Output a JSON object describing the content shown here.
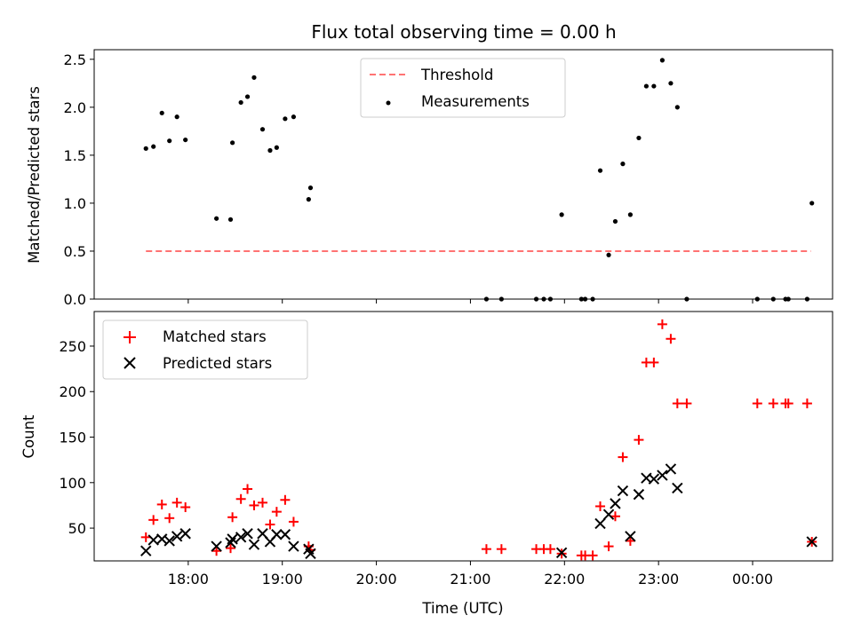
{
  "colors": {
    "threshold": "#ff7373",
    "measurement": "#000000",
    "matched": "#ff0000",
    "predicted": "#000000"
  },
  "chart_data": [
    {
      "type": "scatter",
      "title": "Flux total observing time = 0.00 h",
      "ylabel": "Matched/Predicted stars",
      "xlabel": "",
      "xlim": [
        17.0,
        24.85
      ],
      "ylim": [
        0,
        2.6
      ],
      "yticks": [
        0.0,
        0.5,
        1.0,
        1.5,
        2.0,
        2.5
      ],
      "ytick_labels": [
        "0.0",
        "0.5",
        "1.0",
        "1.5",
        "2.0",
        "2.5"
      ],
      "legend": [
        "Threshold",
        "Measurements"
      ],
      "legend_position": "top-center",
      "series": [
        {
          "name": "Threshold",
          "style": "dashed-line",
          "x": [
            17.55,
            24.62
          ],
          "y": [
            0.5,
            0.5
          ]
        },
        {
          "name": "Measurements",
          "style": "dot",
          "x": [
            17.55,
            17.63,
            17.72,
            17.8,
            17.88,
            17.97,
            18.3,
            18.45,
            18.47,
            18.56,
            18.63,
            18.7,
            18.79,
            18.87,
            18.94,
            19.03,
            19.12,
            19.28,
            19.3,
            21.17,
            21.33,
            21.7,
            21.78,
            21.85,
            21.97,
            22.18,
            22.22,
            22.3,
            22.38,
            22.47,
            22.54,
            22.62,
            22.7,
            22.79,
            22.87,
            22.95,
            23.04,
            23.13,
            23.2,
            23.3,
            24.05,
            24.22,
            24.35,
            24.38,
            24.58,
            24.63
          ],
          "y": [
            1.57,
            1.59,
            1.94,
            1.65,
            1.9,
            1.66,
            0.84,
            0.83,
            1.63,
            2.05,
            2.11,
            2.31,
            1.77,
            1.55,
            1.58,
            1.88,
            1.9,
            1.04,
            1.16,
            0.0,
            0.0,
            0.0,
            0.0,
            0.0,
            0.88,
            0.0,
            0.0,
            0.0,
            1.34,
            0.46,
            0.81,
            1.41,
            0.88,
            1.68,
            2.22,
            2.22,
            2.49,
            2.25,
            2.0,
            0.0,
            0.0,
            0.0,
            0.0,
            0.0,
            0.0,
            1.0
          ]
        }
      ]
    },
    {
      "type": "scatter",
      "title": "",
      "ylabel": "Count",
      "xlabel": "Time (UTC)",
      "xlim": [
        17.0,
        24.85
      ],
      "ylim": [
        14,
        288
      ],
      "yticks": [
        50,
        100,
        150,
        200,
        250
      ],
      "ytick_labels": [
        "50",
        "100",
        "150",
        "200",
        "250"
      ],
      "xticks": [
        18,
        19,
        20,
        21,
        22,
        23,
        24
      ],
      "xtick_labels": [
        "18:00",
        "19:00",
        "20:00",
        "21:00",
        "22:00",
        "23:00",
        "00:00"
      ],
      "legend": [
        "Matched stars",
        "Predicted stars"
      ],
      "legend_position": "top-left",
      "series": [
        {
          "name": "Matched stars",
          "style": "plus",
          "x": [
            17.55,
            17.63,
            17.72,
            17.8,
            17.88,
            17.97,
            18.3,
            18.45,
            18.47,
            18.56,
            18.63,
            18.7,
            18.79,
            18.87,
            18.94,
            19.03,
            19.12,
            19.28,
            19.3,
            21.17,
            21.33,
            21.7,
            21.78,
            21.85,
            21.97,
            22.18,
            22.22,
            22.3,
            22.38,
            22.47,
            22.54,
            22.62,
            22.7,
            22.79,
            22.87,
            22.95,
            23.04,
            23.13,
            23.2,
            23.3,
            24.05,
            24.22,
            24.35,
            24.38,
            24.58,
            24.63
          ],
          "y": [
            40,
            59,
            76,
            61,
            78,
            73,
            25,
            28,
            62,
            82,
            93,
            75,
            78,
            54,
            68,
            81,
            57,
            30,
            26,
            27,
            27,
            27,
            27,
            27,
            22,
            20,
            20,
            20,
            74,
            30,
            63,
            128,
            36,
            147,
            232,
            232,
            274,
            258,
            187,
            187,
            187,
            187,
            187,
            187,
            187,
            35
          ]
        },
        {
          "name": "Predicted stars",
          "style": "x",
          "x": [
            17.55,
            17.63,
            17.72,
            17.8,
            17.88,
            17.97,
            18.3,
            18.45,
            18.47,
            18.56,
            18.63,
            18.7,
            18.79,
            18.87,
            18.94,
            19.03,
            19.12,
            19.28,
            19.3,
            21.97,
            22.38,
            22.47,
            22.54,
            22.62,
            22.7,
            22.79,
            22.87,
            22.95,
            23.04,
            23.13,
            23.2,
            24.63
          ],
          "y": [
            25,
            37,
            38,
            36,
            41,
            44,
            30,
            34,
            38,
            40,
            44,
            32,
            44,
            35,
            43,
            43,
            30,
            27,
            22,
            23,
            55,
            65,
            77,
            91,
            41,
            87,
            105,
            104,
            108,
            115,
            94,
            35
          ]
        }
      ]
    }
  ]
}
